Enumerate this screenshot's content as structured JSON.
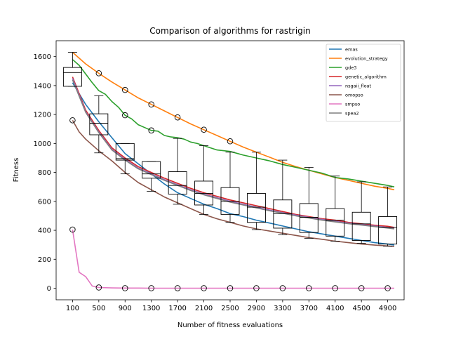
{
  "chart_data": {
    "type": "line",
    "title": "Comparison of algorithms for rastrigin",
    "xlabel": "Number of fitness evaluations",
    "ylabel": "Fitness",
    "xlim": [
      -150,
      5150
    ],
    "ylim": [
      -80,
      1710
    ],
    "xticks": [
      100,
      500,
      900,
      1300,
      1700,
      2100,
      2500,
      2900,
      3300,
      3700,
      4100,
      4500,
      4900
    ],
    "yticks": [
      0,
      200,
      400,
      600,
      800,
      1000,
      1200,
      1400,
      1600
    ],
    "grid": false,
    "legend_position": "top-right",
    "series": [
      {
        "name": "emas",
        "color": "#1f77b4",
        "x": [
          100,
          300,
          500,
          700,
          900,
          1100,
          1300,
          1500,
          1700,
          1900,
          2100,
          2300,
          2500,
          2700,
          2900,
          3100,
          3300,
          3500,
          3700,
          3900,
          4100,
          4300,
          4500,
          4700,
          4900,
          5000
        ],
        "y": [
          1420,
          1270,
          1150,
          1040,
          930,
          860,
          790,
          720,
          660,
          620,
          580,
          550,
          515,
          495,
          470,
          450,
          430,
          410,
          390,
          375,
          360,
          345,
          330,
          315,
          305,
          298
        ]
      },
      {
        "name": "evolution_strategy",
        "color": "#ff7f0e",
        "x": [
          100,
          300,
          500,
          700,
          900,
          1100,
          1300,
          1500,
          1700,
          1900,
          2100,
          2300,
          2500,
          2700,
          2900,
          3100,
          3300,
          3500,
          3700,
          3900,
          4100,
          4300,
          4500,
          4700,
          4900,
          5000
        ],
        "y": [
          1630,
          1550,
          1485,
          1425,
          1370,
          1315,
          1270,
          1225,
          1180,
          1135,
          1095,
          1055,
          1015,
          975,
          940,
          905,
          870,
          840,
          815,
          790,
          765,
          745,
          725,
          705,
          690,
          680
        ]
      },
      {
        "name": "gde3",
        "color": "#2ca02c",
        "x": [
          100,
          200,
          300,
          400,
          500,
          600,
          700,
          800,
          900,
          1000,
          1100,
          1200,
          1300,
          1400,
          1500,
          1600,
          1700,
          1800,
          1900,
          2000,
          2100,
          2300,
          2500,
          2700,
          2900,
          3100,
          3300,
          3500,
          3700,
          3900,
          4100,
          4300,
          4500,
          4700,
          4900,
          5000
        ],
        "y": [
          1580,
          1540,
          1480,
          1420,
          1365,
          1340,
          1290,
          1250,
          1195,
          1170,
          1130,
          1110,
          1090,
          1085,
          1055,
          1045,
          1040,
          1030,
          1010,
          1000,
          985,
          955,
          945,
          920,
          900,
          880,
          855,
          835,
          815,
          795,
          765,
          755,
          740,
          725,
          710,
          700
        ]
      },
      {
        "name": "genetic_algorithm",
        "color": "#d62728",
        "x": [
          100,
          300,
          500,
          700,
          900,
          1100,
          1300,
          1500,
          1700,
          1900,
          2100,
          2300,
          2500,
          2700,
          2900,
          3100,
          3300,
          3500,
          3700,
          3900,
          4100,
          4300,
          4500,
          4700,
          4900,
          5000
        ],
        "y": [
          1460,
          1230,
          1090,
          970,
          900,
          840,
          800,
          760,
          725,
          690,
          660,
          635,
          610,
          590,
          570,
          550,
          530,
          510,
          495,
          480,
          470,
          455,
          445,
          435,
          428,
          420
        ]
      },
      {
        "name": "nsgaii_float",
        "color": "#9467bd",
        "x": [
          100,
          300,
          500,
          700,
          900,
          1100,
          1300,
          1500,
          1700,
          1900,
          2100,
          2300,
          2500,
          2700,
          2900,
          3100,
          3300,
          3500,
          3700,
          3900,
          4100,
          4300,
          4500,
          4700,
          4900,
          5000
        ],
        "y": [
          1450,
          1220,
          1080,
          960,
          890,
          830,
          790,
          750,
          715,
          680,
          650,
          625,
          600,
          580,
          560,
          540,
          522,
          505,
          490,
          475,
          462,
          450,
          440,
          430,
          420,
          413
        ]
      },
      {
        "name": "omopso",
        "color": "#8c564b",
        "x": [
          100,
          200,
          300,
          500,
          700,
          900,
          1100,
          1300,
          1500,
          1700,
          1900,
          2100,
          2300,
          2500,
          2700,
          2900,
          3100,
          3300,
          3500,
          3700,
          3900,
          4100,
          4300,
          4500,
          4700,
          4900,
          5000
        ],
        "y": [
          1160,
          1080,
          1030,
          950,
          880,
          800,
          730,
          680,
          630,
          590,
          550,
          510,
          480,
          455,
          430,
          410,
          395,
          380,
          365,
          350,
          338,
          325,
          315,
          305,
          298,
          292,
          288
        ]
      },
      {
        "name": "smpso",
        "color": "#e377c2",
        "x": [
          100,
          200,
          300,
          400,
          500,
          700,
          900,
          1100,
          1300,
          1500,
          1700,
          2100,
          2500,
          2900,
          3300,
          3700,
          4100,
          4500,
          4900,
          5000
        ],
        "y": [
          405,
          110,
          80,
          15,
          5,
          2,
          1,
          1,
          0,
          0,
          0,
          0,
          0,
          0,
          0,
          0,
          0,
          0,
          0,
          0
        ]
      },
      {
        "name": "spea2",
        "color": "#7f7f7f",
        "x": [
          100,
          300,
          500,
          700,
          900,
          1100,
          1300,
          1500,
          1700,
          1900,
          2100,
          2300,
          2500,
          2700,
          2900,
          3100,
          3300,
          3500,
          3700,
          3900,
          4100,
          4300,
          4500,
          4700,
          4900,
          5000
        ],
        "y": [
          1440,
          1215,
          1075,
          955,
          885,
          825,
          785,
          745,
          710,
          675,
          645,
          620,
          595,
          575,
          555,
          535,
          518,
          500,
          485,
          470,
          458,
          446,
          436,
          426,
          416,
          410
        ]
      }
    ],
    "boxplots": [
      {
        "x": 100,
        "whislo": 1395,
        "q1": 1395,
        "med": 1490,
        "q3": 1525,
        "whishi": 1630,
        "fliers": [
          1160,
          405
        ]
      },
      {
        "x": 500,
        "whislo": 935,
        "q1": 1060,
        "med": 1140,
        "q3": 1205,
        "whishi": 1330,
        "fliers": [
          1485,
          5
        ]
      },
      {
        "x": 900,
        "whislo": 790,
        "q1": 885,
        "med": 895,
        "q3": 1000,
        "whishi": 1000,
        "fliers": [
          1370,
          1195,
          0
        ]
      },
      {
        "x": 1300,
        "whislo": 670,
        "q1": 760,
        "med": 790,
        "q3": 875,
        "whishi": 875,
        "fliers": [
          1270,
          1090,
          0
        ]
      },
      {
        "x": 1700,
        "whislo": 580,
        "q1": 650,
        "med": 710,
        "q3": 805,
        "whishi": 1035,
        "fliers": [
          1180,
          0
        ]
      },
      {
        "x": 2100,
        "whislo": 510,
        "q1": 575,
        "med": 655,
        "q3": 740,
        "whishi": 985,
        "fliers": [
          1095,
          0
        ]
      },
      {
        "x": 2500,
        "whislo": 455,
        "q1": 510,
        "med": 600,
        "q3": 695,
        "whishi": 940,
        "fliers": [
          1015,
          0
        ]
      },
      {
        "x": 2900,
        "whislo": 405,
        "q1": 455,
        "med": 560,
        "q3": 655,
        "whishi": 940,
        "fliers": [
          0
        ]
      },
      {
        "x": 3300,
        "whislo": 370,
        "q1": 415,
        "med": 515,
        "q3": 610,
        "whishi": 885,
        "fliers": [
          0
        ]
      },
      {
        "x": 3700,
        "whislo": 345,
        "q1": 385,
        "med": 490,
        "q3": 585,
        "whishi": 835,
        "fliers": [
          0
        ]
      },
      {
        "x": 4100,
        "whislo": 325,
        "q1": 360,
        "med": 470,
        "q3": 550,
        "whishi": 775,
        "fliers": [
          0
        ]
      },
      {
        "x": 4500,
        "whislo": 310,
        "q1": 330,
        "med": 445,
        "q3": 525,
        "whishi": 735,
        "fliers": [
          0
        ]
      },
      {
        "x": 4900,
        "whislo": 290,
        "q1": 305,
        "med": 420,
        "q3": 495,
        "whishi": 700,
        "fliers": [
          0
        ]
      }
    ]
  }
}
